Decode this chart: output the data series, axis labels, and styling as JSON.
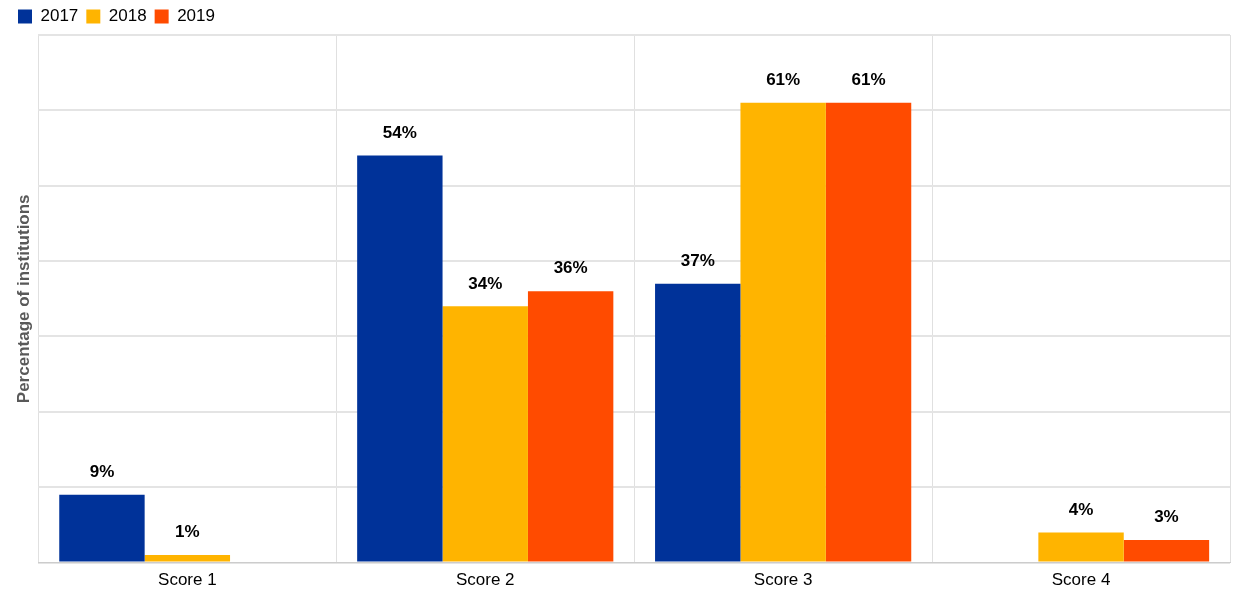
{
  "chart_data": {
    "type": "bar",
    "ylabel": "Percentage of institutions",
    "categories": [
      "Score 1",
      "Score 2",
      "Score 3",
      "Score 4"
    ],
    "series": [
      {
        "name": "2017",
        "color": "#003299",
        "values": [
          9,
          54,
          37,
          null
        ],
        "value_labels": [
          "9%",
          "54%",
          "37%",
          null
        ]
      },
      {
        "name": "2018",
        "color": "#ffb400",
        "values": [
          1,
          34,
          61,
          4
        ],
        "value_labels": [
          "1%",
          "34%",
          "61%",
          "4%"
        ]
      },
      {
        "name": "2019",
        "color": "#ff4b00",
        "values": [
          null,
          36,
          61,
          3
        ],
        "value_labels": [
          null,
          "36%",
          "61%",
          "3%"
        ]
      }
    ],
    "tick_labels": "x",
    "grid": true,
    "legend": "top left"
  }
}
